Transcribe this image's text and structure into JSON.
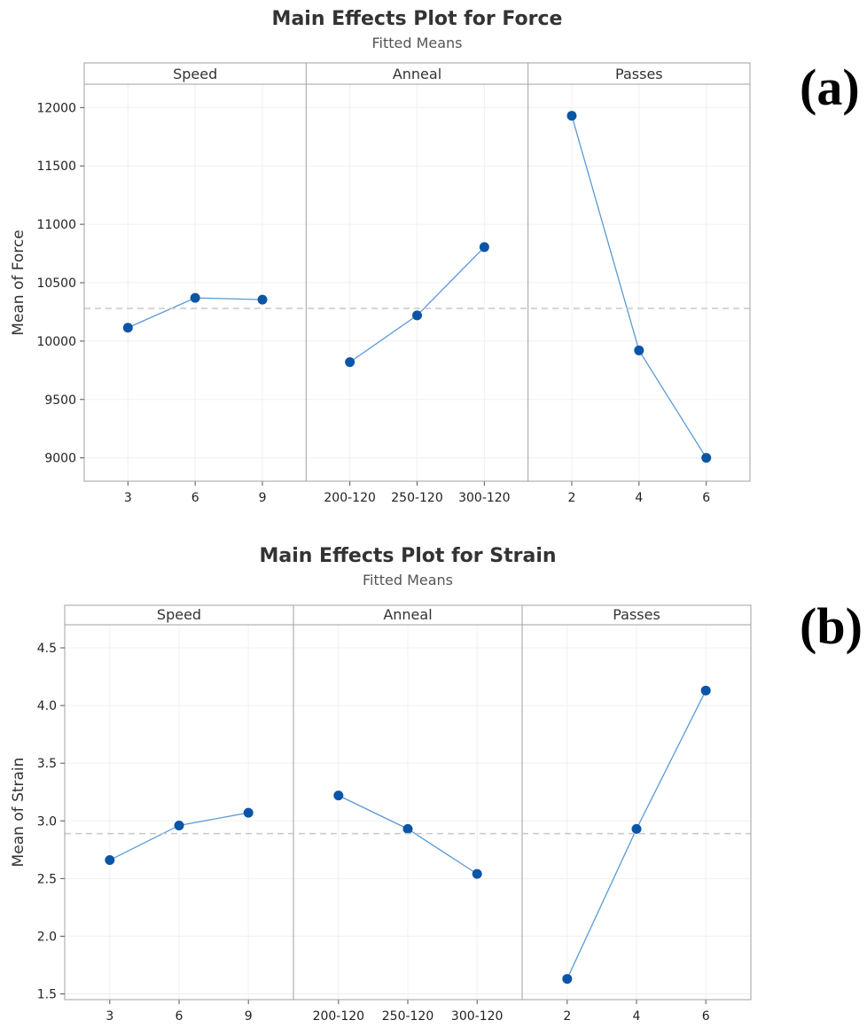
{
  "panel_labels": [
    "(a)",
    "(b)"
  ],
  "colors": {
    "marker": "#0b55a6",
    "line": "#5a9ad4",
    "reference": "#c8c8c8",
    "grid": "#f0f0f0",
    "frame": "#a0a0a0"
  },
  "chart_data": [
    {
      "type": "line",
      "title": "Main Effects Plot for Force",
      "subtitle": "Fitted Means",
      "ylabel": "Mean of Force",
      "ylim": [
        8800,
        12200
      ],
      "yticks": [
        9000,
        9500,
        10000,
        10500,
        11000,
        11500,
        12000
      ],
      "reference_line": 10280,
      "grid": true,
      "panels": [
        {
          "name": "Speed",
          "categories": [
            "3",
            "6",
            "9"
          ],
          "values": [
            10115,
            10370,
            10355
          ]
        },
        {
          "name": "Anneal",
          "categories": [
            "200-120",
            "250-120",
            "300-120"
          ],
          "values": [
            9820,
            10220,
            10805
          ]
        },
        {
          "name": "Passes",
          "categories": [
            "2",
            "4",
            "6"
          ],
          "values": [
            11930,
            9920,
            9000
          ]
        }
      ]
    },
    {
      "type": "line",
      "title": "Main Effects Plot for Strain",
      "subtitle": "Fitted Means",
      "ylabel": "Mean of Strain",
      "ylim": [
        1.45,
        4.7
      ],
      "yticks": [
        1.5,
        2.0,
        2.5,
        3.0,
        3.5,
        4.0,
        4.5
      ],
      "reference_line": 2.89,
      "grid": true,
      "panels": [
        {
          "name": "Speed",
          "categories": [
            "3",
            "6",
            "9"
          ],
          "values": [
            2.66,
            2.96,
            3.07
          ]
        },
        {
          "name": "Anneal",
          "categories": [
            "200-120",
            "250-120",
            "300-120"
          ],
          "values": [
            3.22,
            2.93,
            2.54
          ]
        },
        {
          "name": "Passes",
          "categories": [
            "2",
            "4",
            "6"
          ],
          "values": [
            1.63,
            2.93,
            4.13
          ]
        }
      ]
    }
  ]
}
